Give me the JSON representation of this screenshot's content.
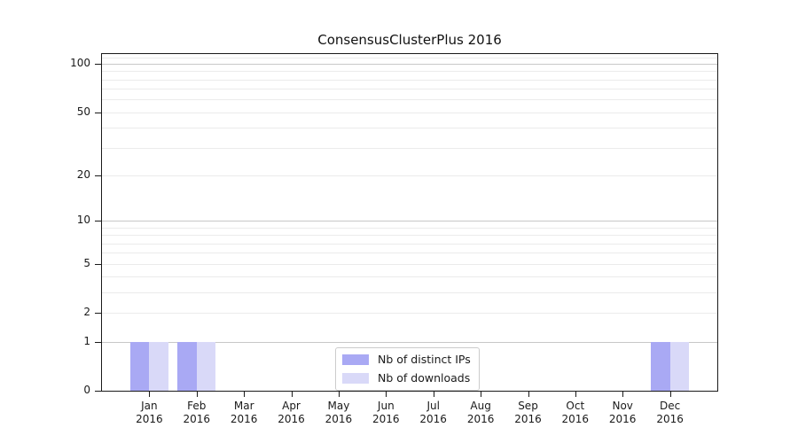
{
  "chart_data": {
    "type": "bar",
    "title": "ConsensusClusterPlus 2016",
    "categories": [
      "Jan",
      "Feb",
      "Mar",
      "Apr",
      "May",
      "Jun",
      "Jul",
      "Aug",
      "Sep",
      "Oct",
      "Nov",
      "Dec"
    ],
    "category_year": "2016",
    "series": [
      {
        "name": "Nb of distinct IPs",
        "key": "distinct-ips",
        "color": "#a9a9f4",
        "values": [
          1,
          1,
          0,
          0,
          0,
          0,
          0,
          0,
          0,
          0,
          0,
          1
        ]
      },
      {
        "name": "Nb of downloads",
        "key": "downloads",
        "color": "#d9d9f8",
        "values": [
          1,
          1,
          0,
          0,
          0,
          0,
          0,
          0,
          0,
          0,
          0,
          1
        ]
      }
    ],
    "y_axis": {
      "scale": "log1p",
      "min": 0,
      "max": 115,
      "tick_values": [
        0,
        1,
        2,
        5,
        10,
        20,
        50,
        100
      ],
      "tick_labels": [
        "0",
        "1",
        "2",
        "5",
        "10",
        "20",
        "50",
        "100"
      ],
      "gridlines_major": [
        1,
        10,
        100
      ],
      "gridlines_minor": [
        2,
        3,
        4,
        5,
        6,
        7,
        8,
        9,
        20,
        30,
        40,
        50,
        60,
        70,
        80,
        90,
        110
      ]
    },
    "legend_position": "bottom-center",
    "colors": {
      "grid_major": "#c8c8c8",
      "grid_minor": "#ebebeb",
      "axis": "#1a1a1a",
      "text": "#1a1a1a",
      "background": "#ffffff"
    }
  }
}
